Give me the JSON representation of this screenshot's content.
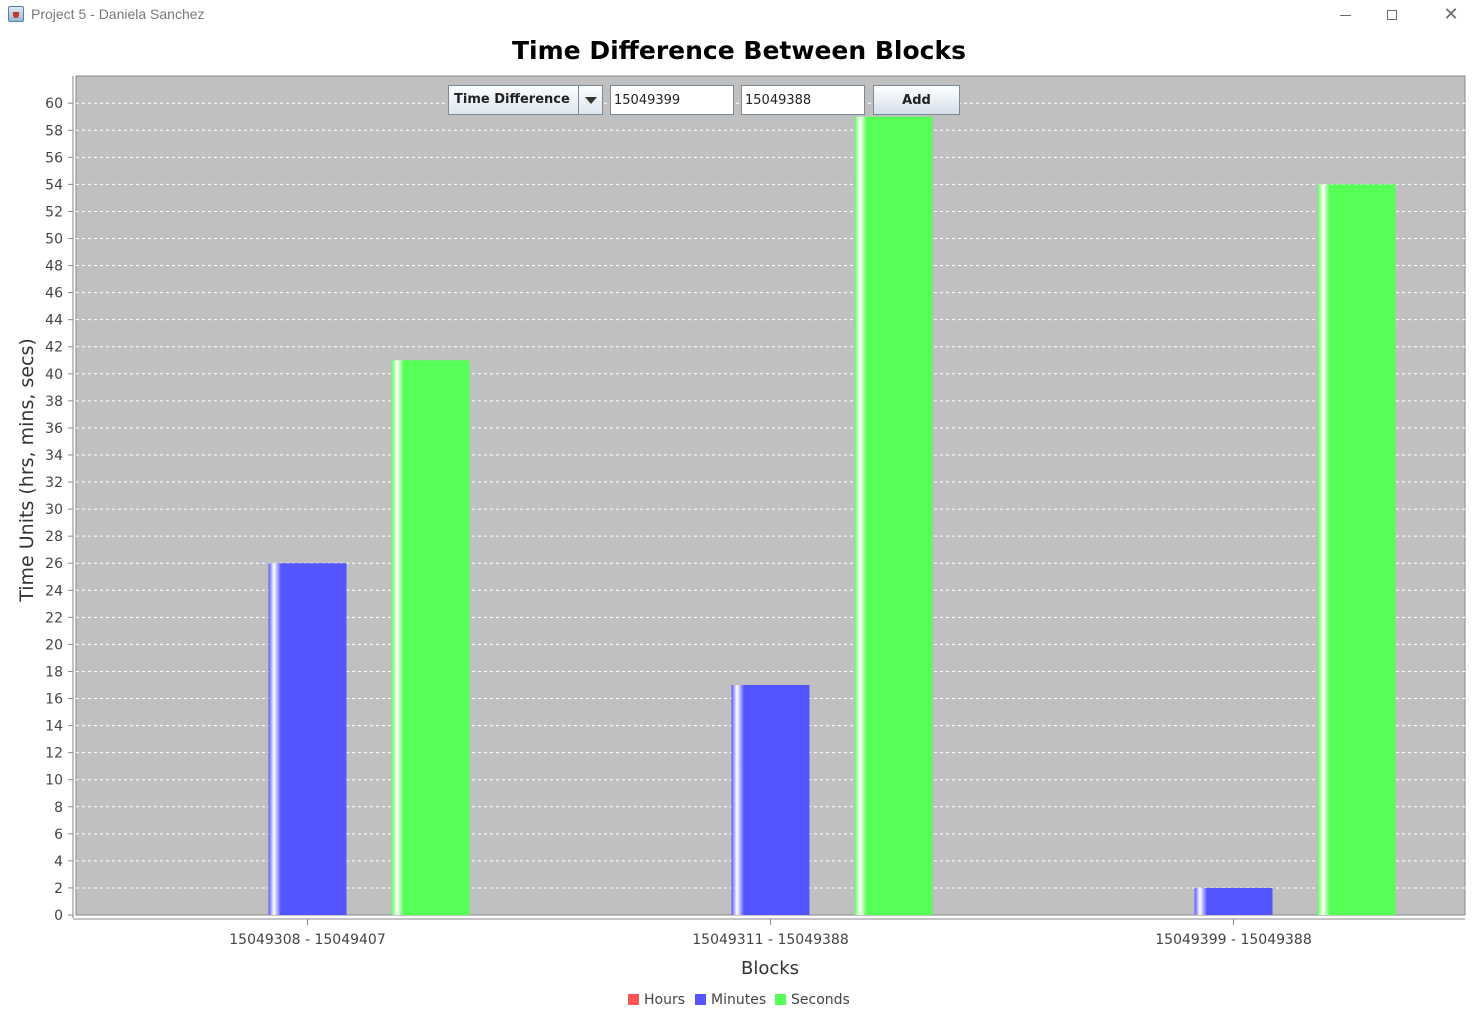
{
  "window": {
    "title": "Project 5 - Daniela Sanchez",
    "min_glyph": "",
    "close_glyph": "✕"
  },
  "controls": {
    "mode_selected": "Time Difference",
    "block_a_value": "15049399",
    "block_b_value": "15049388",
    "add_label": "Add"
  },
  "colors": {
    "plot_background": "#c0c0c0",
    "hours": "#ff5555",
    "minutes": "#5555ff",
    "seconds": "#55ff55"
  },
  "chart_data": {
    "type": "bar",
    "title": "Time Difference Between Blocks",
    "xlabel": "Blocks",
    "ylabel": "Time Units (hrs, mins, secs)",
    "ylim": [
      0,
      62
    ],
    "ytick_step": 2,
    "grid": true,
    "legend_position": "bottom",
    "categories": [
      "15049308 - 15049407",
      "15049311 - 15049388",
      "15049399 - 15049388"
    ],
    "series": [
      {
        "name": "Hours",
        "values": [
          0,
          0,
          0
        ]
      },
      {
        "name": "Minutes",
        "values": [
          26,
          17,
          2
        ]
      },
      {
        "name": "Seconds",
        "values": [
          41,
          59,
          54
        ]
      }
    ]
  }
}
